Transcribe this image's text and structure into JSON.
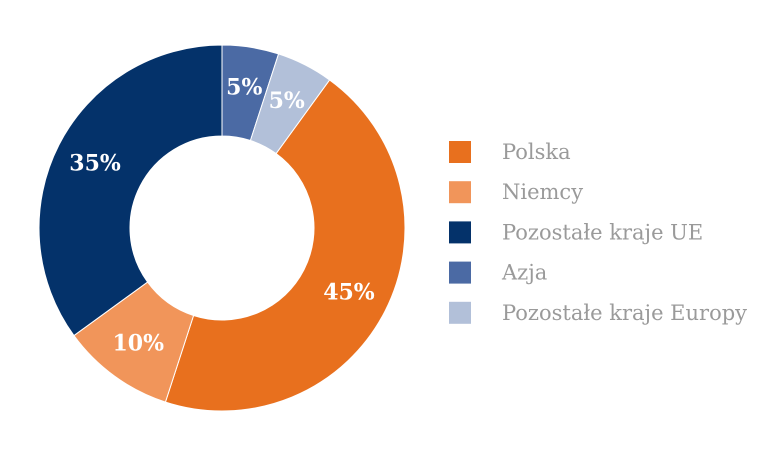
{
  "chart_data": {
    "type": "pie",
    "categories": [
      "Polska",
      "Niemcy",
      "Pozostałe kraje UE",
      "Azja",
      "Pozostałe kraje Europy"
    ],
    "values": [
      45,
      10,
      35,
      5,
      5
    ],
    "value_labels": [
      "45%",
      "10%",
      "35%",
      "5%",
      "5%"
    ],
    "colors": [
      "#e8701e",
      "#f1955a",
      "#04326a",
      "#4b6aa4",
      "#b2c0d9"
    ],
    "donut": true
  }
}
